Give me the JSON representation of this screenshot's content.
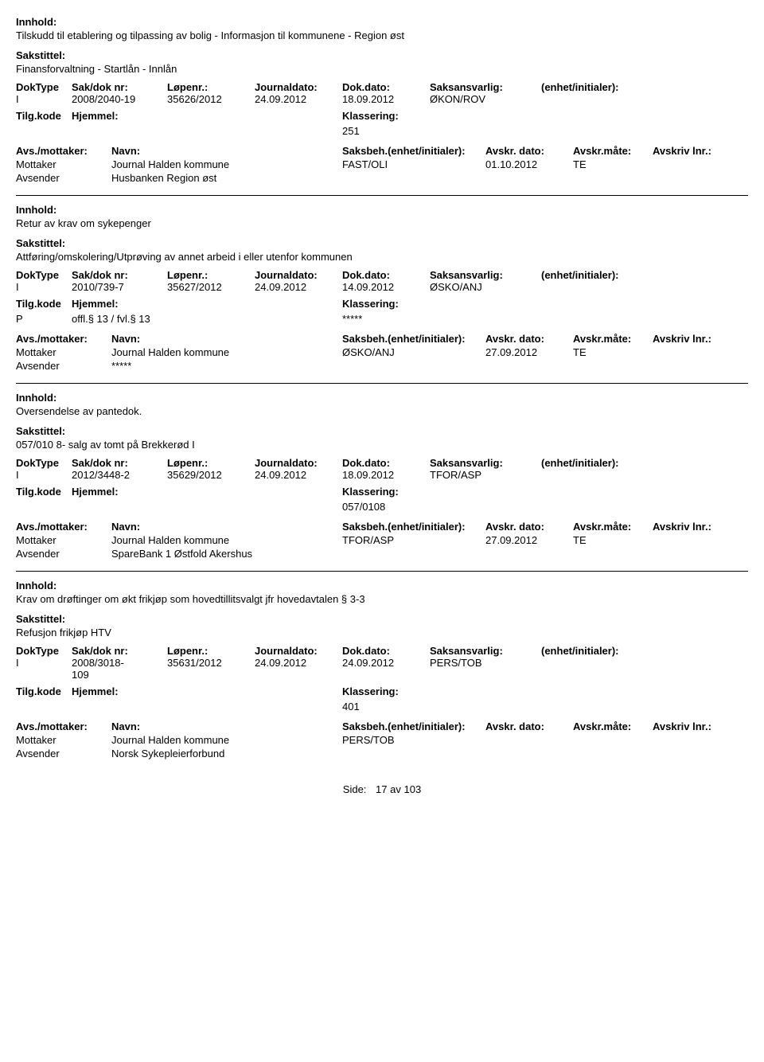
{
  "labels": {
    "innhold": "Innhold:",
    "sakstittel": "Sakstittel:",
    "doktype": "DokType",
    "sakdok": "Sak/dok nr:",
    "lopenr": "Løpenr.:",
    "journaldato": "Journaldato:",
    "dokdato": "Dok.dato:",
    "saksansvarlig": "Saksansvarlig:",
    "enhet": "(enhet/initialer):",
    "tilgkode": "Tilg.kode",
    "hjemmel": "Hjemmel:",
    "klassering": "Klassering:",
    "avsmottaker": "Avs./mottaker:",
    "navn": "Navn:",
    "saksbeh": "Saksbeh.(enhet/initialer):",
    "avskrdato": "Avskr. dato:",
    "avskrmate": "Avskr.måte:",
    "avskrlnr": "Avskriv lnr.:",
    "mottaker": "Mottaker",
    "avsender": "Avsender"
  },
  "records": [
    {
      "innhold": "Tilskudd til etablering og tilpassing av bolig - Informasjon til kommunene - Region øst",
      "sakstittel": "Finansforvaltning - Startlån - Innlån",
      "doktype": "I",
      "sakdok": "2008/2040-19",
      "lopenr": "35626/2012",
      "journaldato": "24.09.2012",
      "dokdato": "18.09.2012",
      "saksansvarlig": "ØKON/ROV",
      "tilgkode": "",
      "hjemmel": "",
      "klassering": "251",
      "parties": [
        {
          "role": "Mottaker",
          "navn": "Journal Halden kommune",
          "saksbeh": "FAST/OLI",
          "avskrdato": "01.10.2012",
          "avskrmate": "TE"
        },
        {
          "role": "Avsender",
          "navn": "Husbanken Region øst",
          "saksbeh": "",
          "avskrdato": "",
          "avskrmate": ""
        }
      ]
    },
    {
      "innhold": "Retur av krav om sykepenger",
      "sakstittel": "Attføring/omskolering/Utprøving av annet arbeid i eller utenfor kommunen",
      "doktype": "I",
      "sakdok": "2010/739-7",
      "lopenr": "35627/2012",
      "journaldato": "24.09.2012",
      "dokdato": "14.09.2012",
      "saksansvarlig": "ØSKO/ANJ",
      "tilgkode": "P",
      "hjemmel": "offl.§ 13 / fvl.§ 13",
      "klassering": "*****",
      "parties": [
        {
          "role": "Mottaker",
          "navn": "Journal Halden kommune",
          "saksbeh": "ØSKO/ANJ",
          "avskrdato": "27.09.2012",
          "avskrmate": "TE"
        },
        {
          "role": "Avsender",
          "navn": "*****",
          "saksbeh": "",
          "avskrdato": "",
          "avskrmate": ""
        }
      ]
    },
    {
      "innhold": "Oversendelse av pantedok.",
      "sakstittel": "057/010 8- salg av tomt på Brekkerød I",
      "doktype": "I",
      "sakdok": "2012/3448-2",
      "lopenr": "35629/2012",
      "journaldato": "24.09.2012",
      "dokdato": "18.09.2012",
      "saksansvarlig": "TFOR/ASP",
      "tilgkode": "",
      "hjemmel": "",
      "klassering": "057/0108",
      "parties": [
        {
          "role": "Mottaker",
          "navn": "Journal Halden kommune",
          "saksbeh": "TFOR/ASP",
          "avskrdato": "27.09.2012",
          "avskrmate": "TE"
        },
        {
          "role": "Avsender",
          "navn": "SpareBank 1 Østfold Akershus",
          "saksbeh": "",
          "avskrdato": "",
          "avskrmate": ""
        }
      ]
    },
    {
      "innhold": "Krav om drøftinger om økt frikjøp som hovedtillitsvalgt jfr hovedavtalen § 3-3",
      "sakstittel": "Refusjon frikjøp HTV",
      "doktype": "I",
      "sakdok": "2008/3018-109",
      "lopenr": "35631/2012",
      "journaldato": "24.09.2012",
      "dokdato": "24.09.2012",
      "saksansvarlig": "PERS/TOB",
      "tilgkode": "",
      "hjemmel": "",
      "klassering": "401",
      "parties": [
        {
          "role": "Mottaker",
          "navn": "Journal Halden kommune",
          "saksbeh": "PERS/TOB",
          "avskrdato": "",
          "avskrmate": ""
        },
        {
          "role": "Avsender",
          "navn": "Norsk Sykepleierforbund",
          "saksbeh": "",
          "avskrdato": "",
          "avskrmate": ""
        }
      ]
    }
  ],
  "footer": {
    "side_label": "Side:",
    "page": "17",
    "sep": "av",
    "total": "103"
  }
}
